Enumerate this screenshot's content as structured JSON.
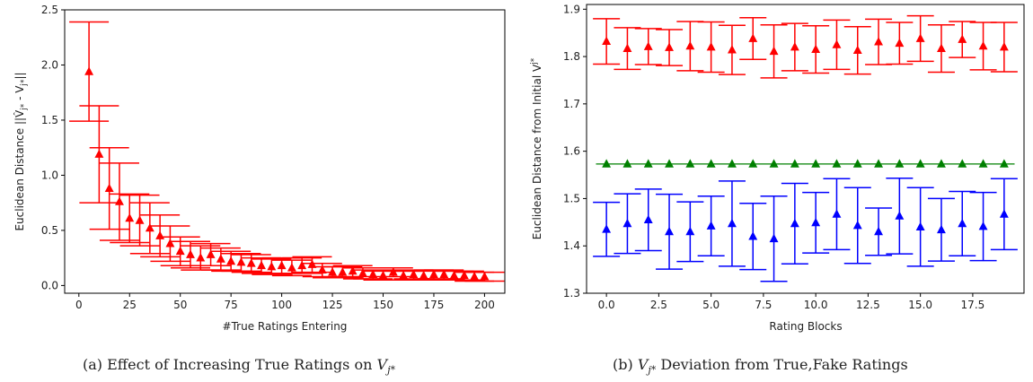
{
  "chart_data": [
    {
      "type": "scatter",
      "title": "",
      "caption": "(a) Effect of Increasing True Ratings on V_j*",
      "xlabel": "#True Ratings Entering",
      "ylabel": "Euclidean Distance ||V̂_j* - V_j*||",
      "xlim": [
        -7,
        210
      ],
      "ylim": [
        -0.07,
        2.5
      ],
      "xticks": [
        0,
        25,
        50,
        75,
        100,
        125,
        150,
        175,
        200
      ],
      "yticks": [
        0.0,
        0.5,
        1.0,
        1.5,
        2.0,
        2.5
      ],
      "xtick_labels": [
        "0",
        "25",
        "50",
        "75",
        "100",
        "125",
        "150",
        "175",
        "200"
      ],
      "ytick_labels": [
        "0.0",
        "0.5",
        "1.0",
        "1.5",
        "2.0",
        "2.5"
      ],
      "grid": false,
      "series": [
        {
          "color": "#ff0000",
          "marker": "triangle",
          "x": [
            5,
            10,
            15,
            20,
            25,
            30,
            35,
            40,
            45,
            50,
            55,
            60,
            65,
            70,
            75,
            80,
            85,
            90,
            95,
            100,
            105,
            110,
            115,
            120,
            125,
            130,
            135,
            140,
            145,
            150,
            155,
            160,
            165,
            170,
            175,
            180,
            185,
            190,
            195,
            200
          ],
          "y": [
            1.94,
            1.19,
            0.88,
            0.76,
            0.61,
            0.59,
            0.52,
            0.45,
            0.38,
            0.31,
            0.28,
            0.25,
            0.28,
            0.24,
            0.22,
            0.21,
            0.2,
            0.18,
            0.17,
            0.18,
            0.16,
            0.18,
            0.19,
            0.14,
            0.12,
            0.12,
            0.13,
            0.11,
            0.1,
            0.09,
            0.12,
            0.09,
            0.1,
            0.09,
            0.1,
            0.1,
            0.09,
            0.09,
            0.08,
            0.08
          ],
          "err": [
            0.45,
            0.44,
            0.37,
            0.35,
            0.22,
            0.23,
            0.23,
            0.19,
            0.16,
            0.13,
            0.12,
            0.11,
            0.1,
            0.1,
            0.09,
            0.08,
            0.08,
            0.07,
            0.07,
            0.07,
            0.07,
            0.07,
            0.07,
            0.06,
            0.05,
            0.05,
            0.05,
            0.05,
            0.04,
            0.04,
            0.04,
            0.04,
            0.04,
            0.04,
            0.04,
            0.04,
            0.04,
            0.04,
            0.04,
            0.04
          ]
        }
      ]
    },
    {
      "type": "scatter",
      "title": "",
      "caption": "(b) V_j* Deviation from True,Fake Ratings",
      "xlabel": "Rating Blocks",
      "ylabel": "Euclidean Distance from Initial V_j*",
      "xlim": [
        -0.95,
        19.95
      ],
      "ylim": [
        1.3,
        1.91
      ],
      "xticks": [
        0,
        2.5,
        5,
        7.5,
        10,
        12.5,
        15,
        17.5
      ],
      "yticks": [
        1.3,
        1.4,
        1.5,
        1.6,
        1.7,
        1.8,
        1.9
      ],
      "xtick_labels": [
        "0.0",
        "2.5",
        "5.0",
        "7.5",
        "10.0",
        "12.5",
        "15.0",
        "17.5"
      ],
      "ytick_labels": [
        "1.3",
        "1.4",
        "1.5",
        "1.6",
        "1.7",
        "1.8",
        "1.9"
      ],
      "grid": false,
      "series": [
        {
          "color": "#ff0000",
          "marker": "triangle",
          "x": [
            0,
            1,
            2,
            3,
            4,
            5,
            6,
            7,
            8,
            9,
            10,
            11,
            12,
            13,
            14,
            15,
            16,
            17,
            18,
            19
          ],
          "y": [
            1.832,
            1.817,
            1.821,
            1.819,
            1.822,
            1.82,
            1.814,
            1.838,
            1.811,
            1.82,
            1.815,
            1.825,
            1.813,
            1.831,
            1.828,
            1.838,
            1.817,
            1.836,
            1.822,
            1.82
          ],
          "err": [
            0.048,
            0.044,
            0.038,
            0.038,
            0.052,
            0.053,
            0.052,
            0.044,
            0.056,
            0.05,
            0.05,
            0.052,
            0.05,
            0.048,
            0.044,
            0.048,
            0.05,
            0.038,
            0.05,
            0.052
          ]
        },
        {
          "color": "#0000ff",
          "marker": "triangle",
          "x": [
            0,
            1,
            2,
            3,
            4,
            5,
            6,
            7,
            8,
            9,
            10,
            11,
            12,
            13,
            14,
            15,
            16,
            17,
            18,
            19
          ],
          "y": [
            1.435,
            1.447,
            1.455,
            1.43,
            1.43,
            1.442,
            1.447,
            1.42,
            1.415,
            1.447,
            1.449,
            1.467,
            1.443,
            1.43,
            1.463,
            1.44,
            1.434,
            1.447,
            1.441,
            1.467
          ],
          "err": [
            0.057,
            0.063,
            0.065,
            0.079,
            0.063,
            0.063,
            0.09,
            0.07,
            0.09,
            0.085,
            0.064,
            0.075,
            0.08,
            0.05,
            0.08,
            0.083,
            0.066,
            0.068,
            0.072,
            0.075
          ]
        },
        {
          "color": "#008000",
          "marker": "triangle",
          "line": true,
          "x": [
            0,
            1,
            2,
            3,
            4,
            5,
            6,
            7,
            8,
            9,
            10,
            11,
            12,
            13,
            14,
            15,
            16,
            17,
            18,
            19
          ],
          "y": [
            1.573,
            1.573,
            1.573,
            1.573,
            1.573,
            1.573,
            1.573,
            1.573,
            1.573,
            1.573,
            1.573,
            1.573,
            1.573,
            1.573,
            1.573,
            1.573,
            1.573,
            1.573,
            1.573,
            1.573
          ]
        }
      ]
    }
  ]
}
